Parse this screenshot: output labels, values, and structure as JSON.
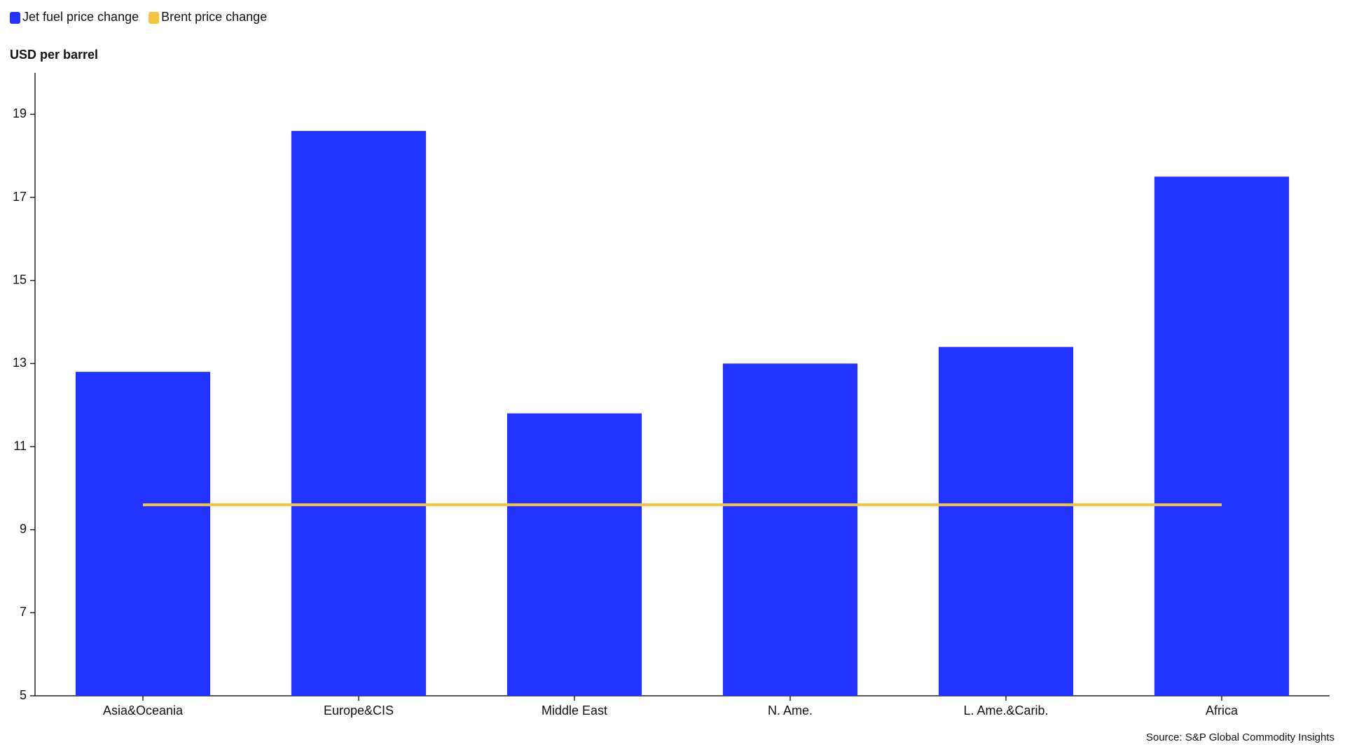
{
  "chart_data": {
    "type": "bar",
    "y_label": "USD per barrel",
    "source": "Source: S&P Global Commodity Insights",
    "categories": [
      "Asia&Oceania",
      "Europe&CIS",
      "Middle East",
      "N. Ame.",
      "L. Ame.&Carib.",
      "Africa"
    ],
    "series": [
      {
        "name": "Jet fuel price change",
        "type": "bar",
        "color": "#2233ff",
        "values": [
          12.8,
          18.6,
          11.8,
          13.0,
          13.4,
          17.5
        ]
      },
      {
        "name": "Brent price change",
        "type": "line",
        "color": "#f5c342",
        "values": [
          9.6,
          9.6,
          9.6,
          9.6,
          9.6,
          9.6
        ]
      }
    ],
    "ylim": [
      5,
      20
    ],
    "yticks": [
      5,
      7,
      9,
      11,
      13,
      15,
      17,
      19
    ],
    "grid": false
  }
}
